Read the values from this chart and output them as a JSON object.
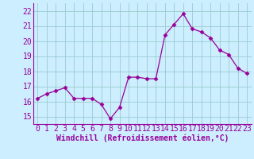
{
  "x": [
    0,
    1,
    2,
    3,
    4,
    5,
    6,
    7,
    8,
    9,
    10,
    11,
    12,
    13,
    14,
    15,
    16,
    17,
    18,
    19,
    20,
    21,
    22,
    23
  ],
  "y": [
    16.2,
    16.5,
    16.7,
    16.9,
    16.2,
    16.2,
    16.2,
    15.8,
    14.85,
    15.6,
    17.6,
    17.6,
    17.5,
    17.5,
    20.4,
    21.1,
    21.8,
    20.8,
    20.6,
    20.2,
    19.4,
    19.1,
    18.2,
    17.85
  ],
  "line_color": "#990099",
  "marker": "D",
  "marker_size": 2.5,
  "bg_color": "#cceeff",
  "grid_color": "#99cccc",
  "xlabel": "Windchill (Refroidissement éolien,°C)",
  "xlabel_color": "#990099",
  "xlabel_fontsize": 7,
  "tick_color": "#990099",
  "tick_fontsize": 7,
  "ylim": [
    14.5,
    22.5
  ],
  "xlim": [
    -0.5,
    23.5
  ],
  "yticks": [
    15,
    16,
    17,
    18,
    19,
    20,
    21,
    22
  ],
  "xticks": [
    0,
    1,
    2,
    3,
    4,
    5,
    6,
    7,
    8,
    9,
    10,
    11,
    12,
    13,
    14,
    15,
    16,
    17,
    18,
    19,
    20,
    21,
    22,
    23
  ]
}
